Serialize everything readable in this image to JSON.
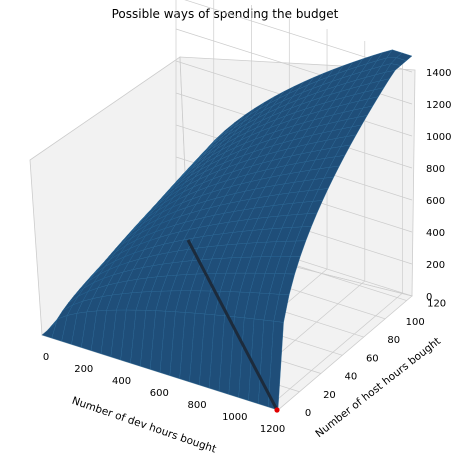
{
  "chart_data": {
    "type": "surface3d",
    "title": "Possible ways of spending the budget",
    "xlabel": "Number of dev hours bought",
    "ylabel": "Number of host hours bought",
    "zlabel": "",
    "x_ticks": [
      "0",
      "200",
      "400",
      "600",
      "800",
      "1000",
      "1200"
    ],
    "y_ticks": [
      "0",
      "20",
      "40",
      "60",
      "80",
      "100",
      "120"
    ],
    "z_ticks": [
      "0",
      "200",
      "400",
      "600",
      "800",
      "1000",
      "1200",
      "1400"
    ],
    "xlim": [
      0,
      1250
    ],
    "ylim": [
      0,
      125
    ],
    "zlim": [
      0,
      1500
    ],
    "grid": true,
    "surface_color": "#1f4e79",
    "surface_edge_color": "#2a6a9a",
    "grid_color": "#cccccc",
    "pane_color": "#f2f2f2",
    "marker_color": "#e00000",
    "line": {
      "description": "dark line on surface",
      "from": [
        100,
        125,
        0
      ],
      "to": [
        1250,
        0,
        0
      ]
    },
    "marker_point": [
      1250,
      0
    ]
  }
}
